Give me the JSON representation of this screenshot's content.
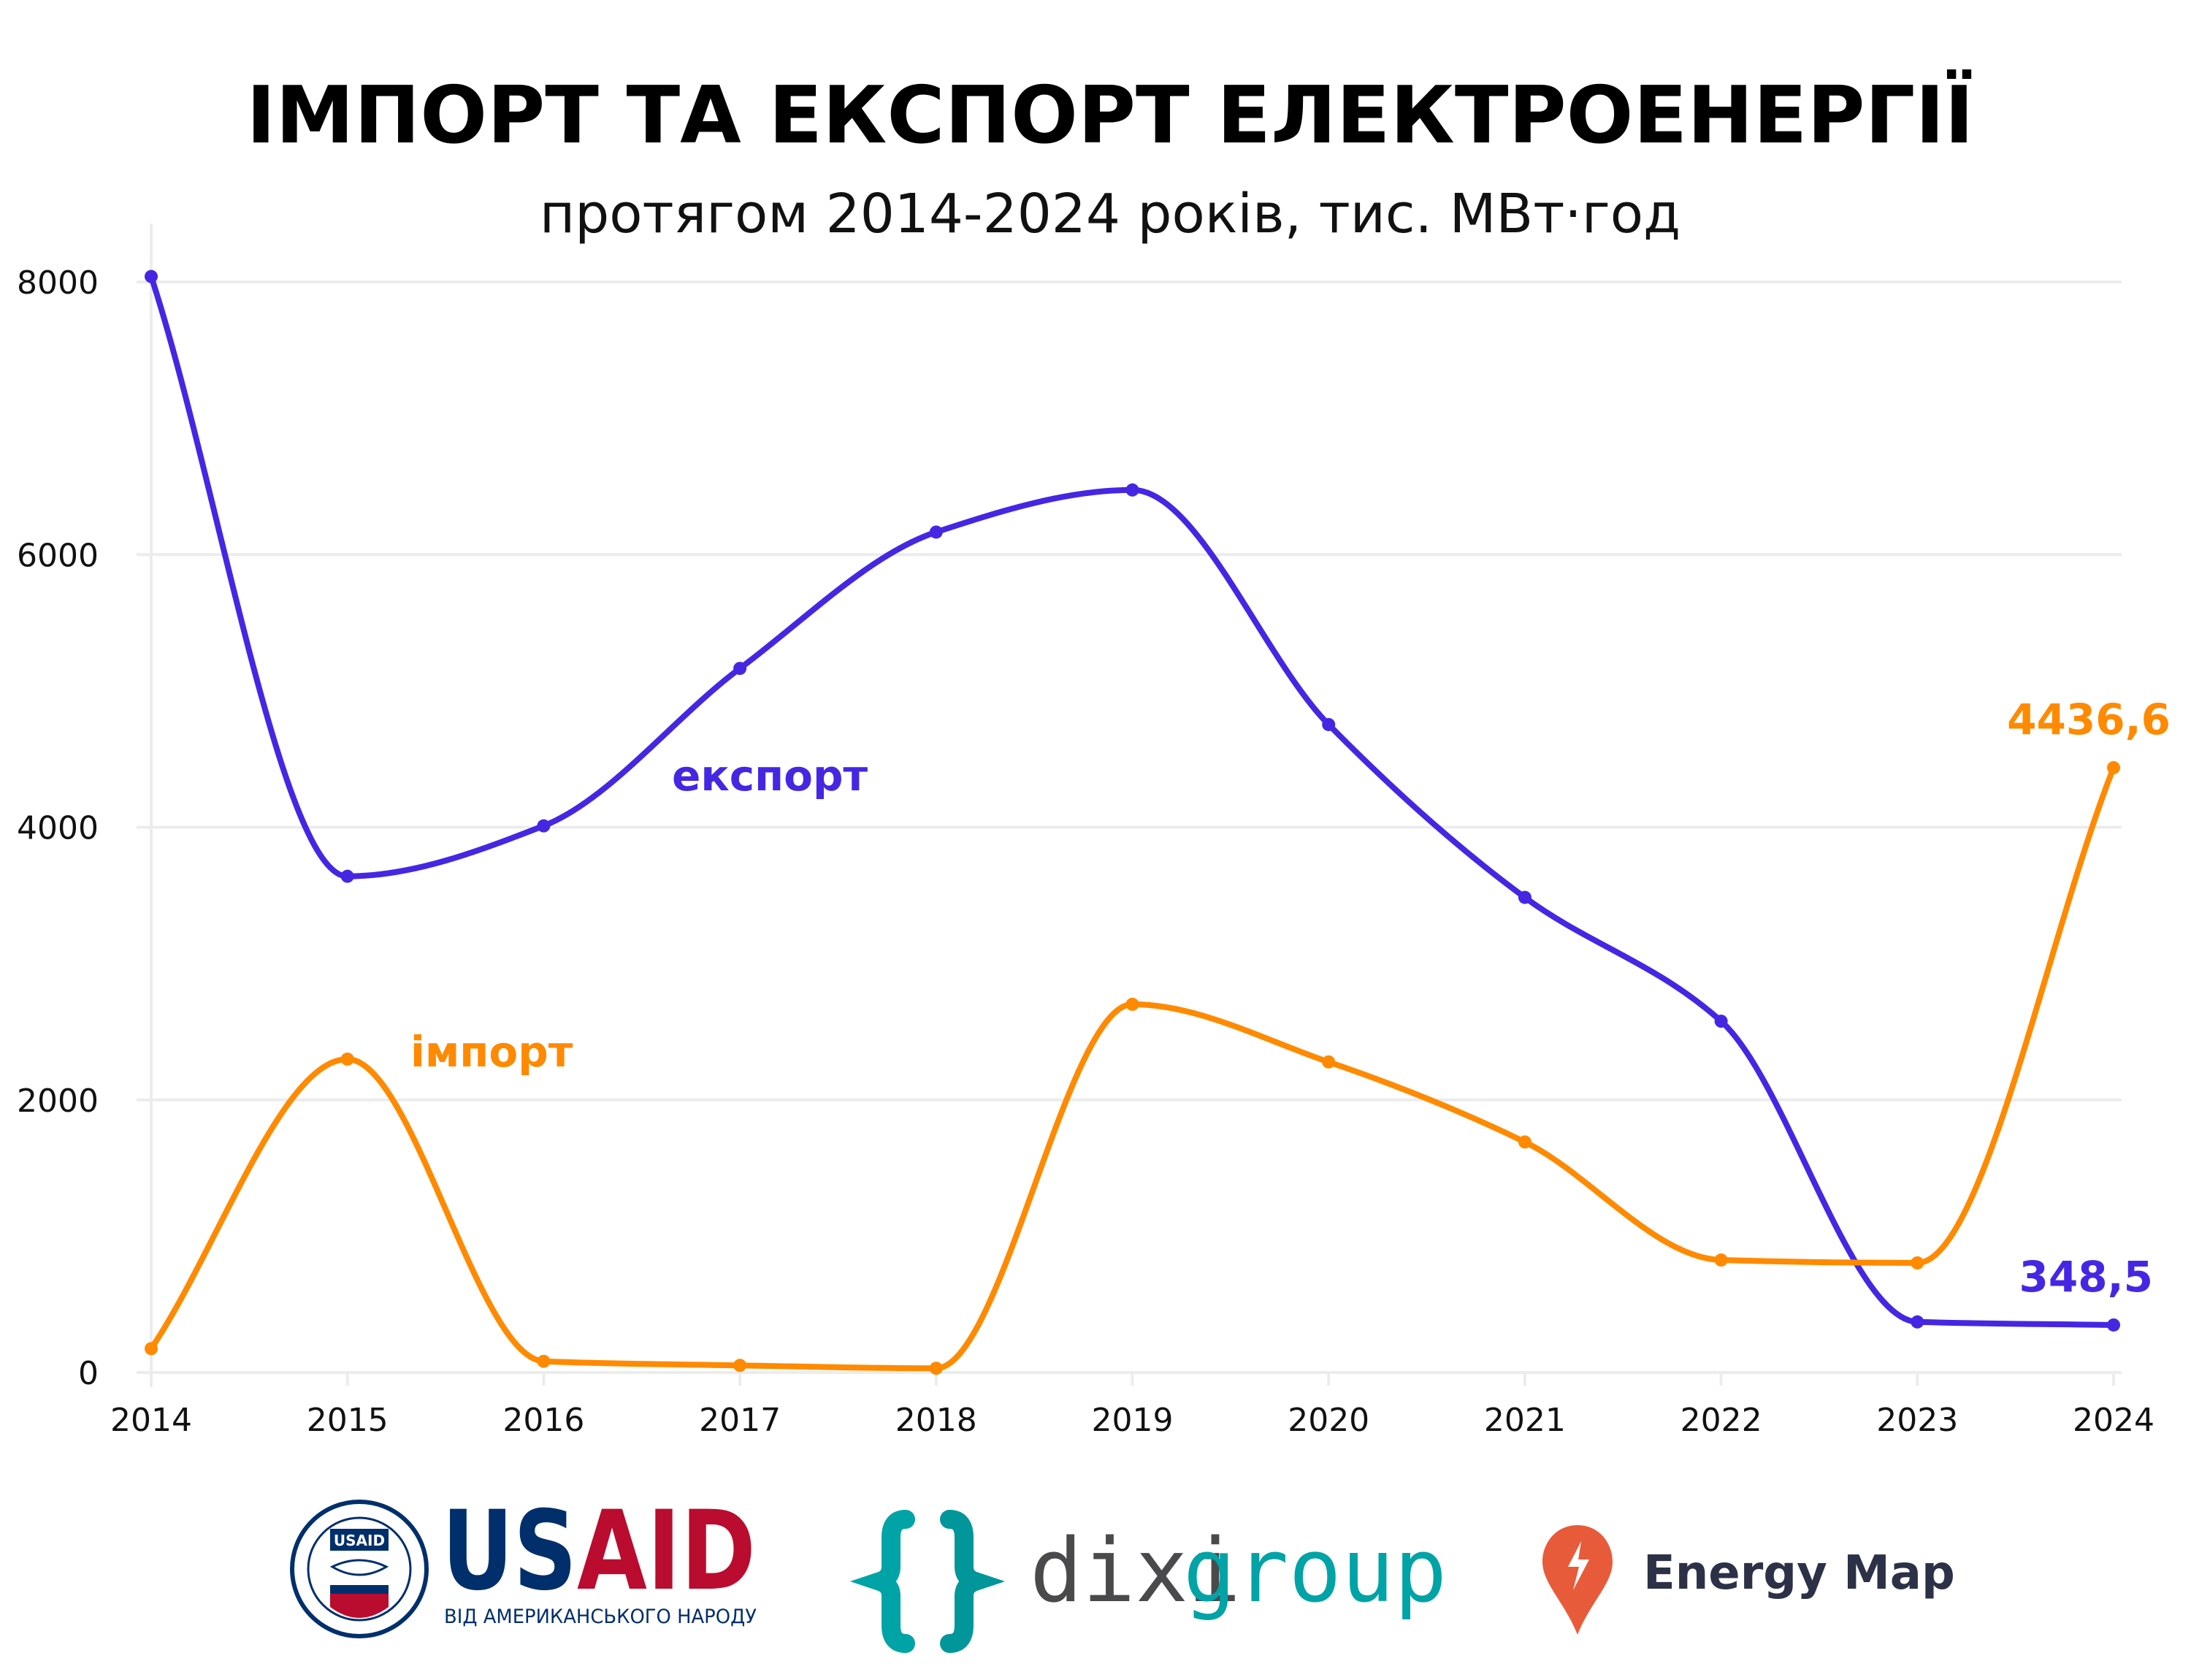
{
  "chart_data": {
    "type": "line",
    "title": "ІМПОРТ ТА ЕКСПОРТ ЕЛЕКТРОЕНЕРГІЇ",
    "subtitle": "протягом 2014-2024 років, тис. МВт·год",
    "xlabel": "",
    "ylabel": "",
    "ylim": [
      0,
      8000
    ],
    "grid": true,
    "x": [
      "2014",
      "2015",
      "2016",
      "2017",
      "2018",
      "2019",
      "2020",
      "2021",
      "2022",
      "2023",
      "2024"
    ],
    "y_ticks": [
      "0",
      "2000",
      "4000",
      "6000",
      "8000"
    ],
    "series": [
      {
        "name": "експорт",
        "color": "#4527e3",
        "values": [
          8040,
          3640,
          4010,
          5165,
          6165,
          6474,
          4753,
          3485,
          2577,
          371,
          348.5
        ],
        "end_label": "348,5"
      },
      {
        "name": "імпорт",
        "color": "#ff8a00",
        "values": [
          175,
          2299,
          82,
          52,
          31,
          2701,
          2278,
          1691,
          825,
          804,
          4436.6
        ],
        "end_label": "4436,6"
      }
    ]
  },
  "footer": {
    "usaid": {
      "name": "USAID",
      "tagline": "ВІД АМЕРИКАНСЬКОГО НАРОДУ",
      "seal_text": "UNITED STATES AGENCY INTERNATIONAL DEVELOPMENT",
      "colors": {
        "blue": "#002f6c",
        "red": "#ba0c2f"
      }
    },
    "dixi": {
      "part1": "dixi",
      "part2": "group",
      "colors": {
        "gray": "#4a4a4c",
        "teal": "#00a3a6"
      }
    },
    "energymap": {
      "name": "Energy Map",
      "colors": {
        "pin": "#e85b3a",
        "text": "#2d3147"
      }
    }
  }
}
